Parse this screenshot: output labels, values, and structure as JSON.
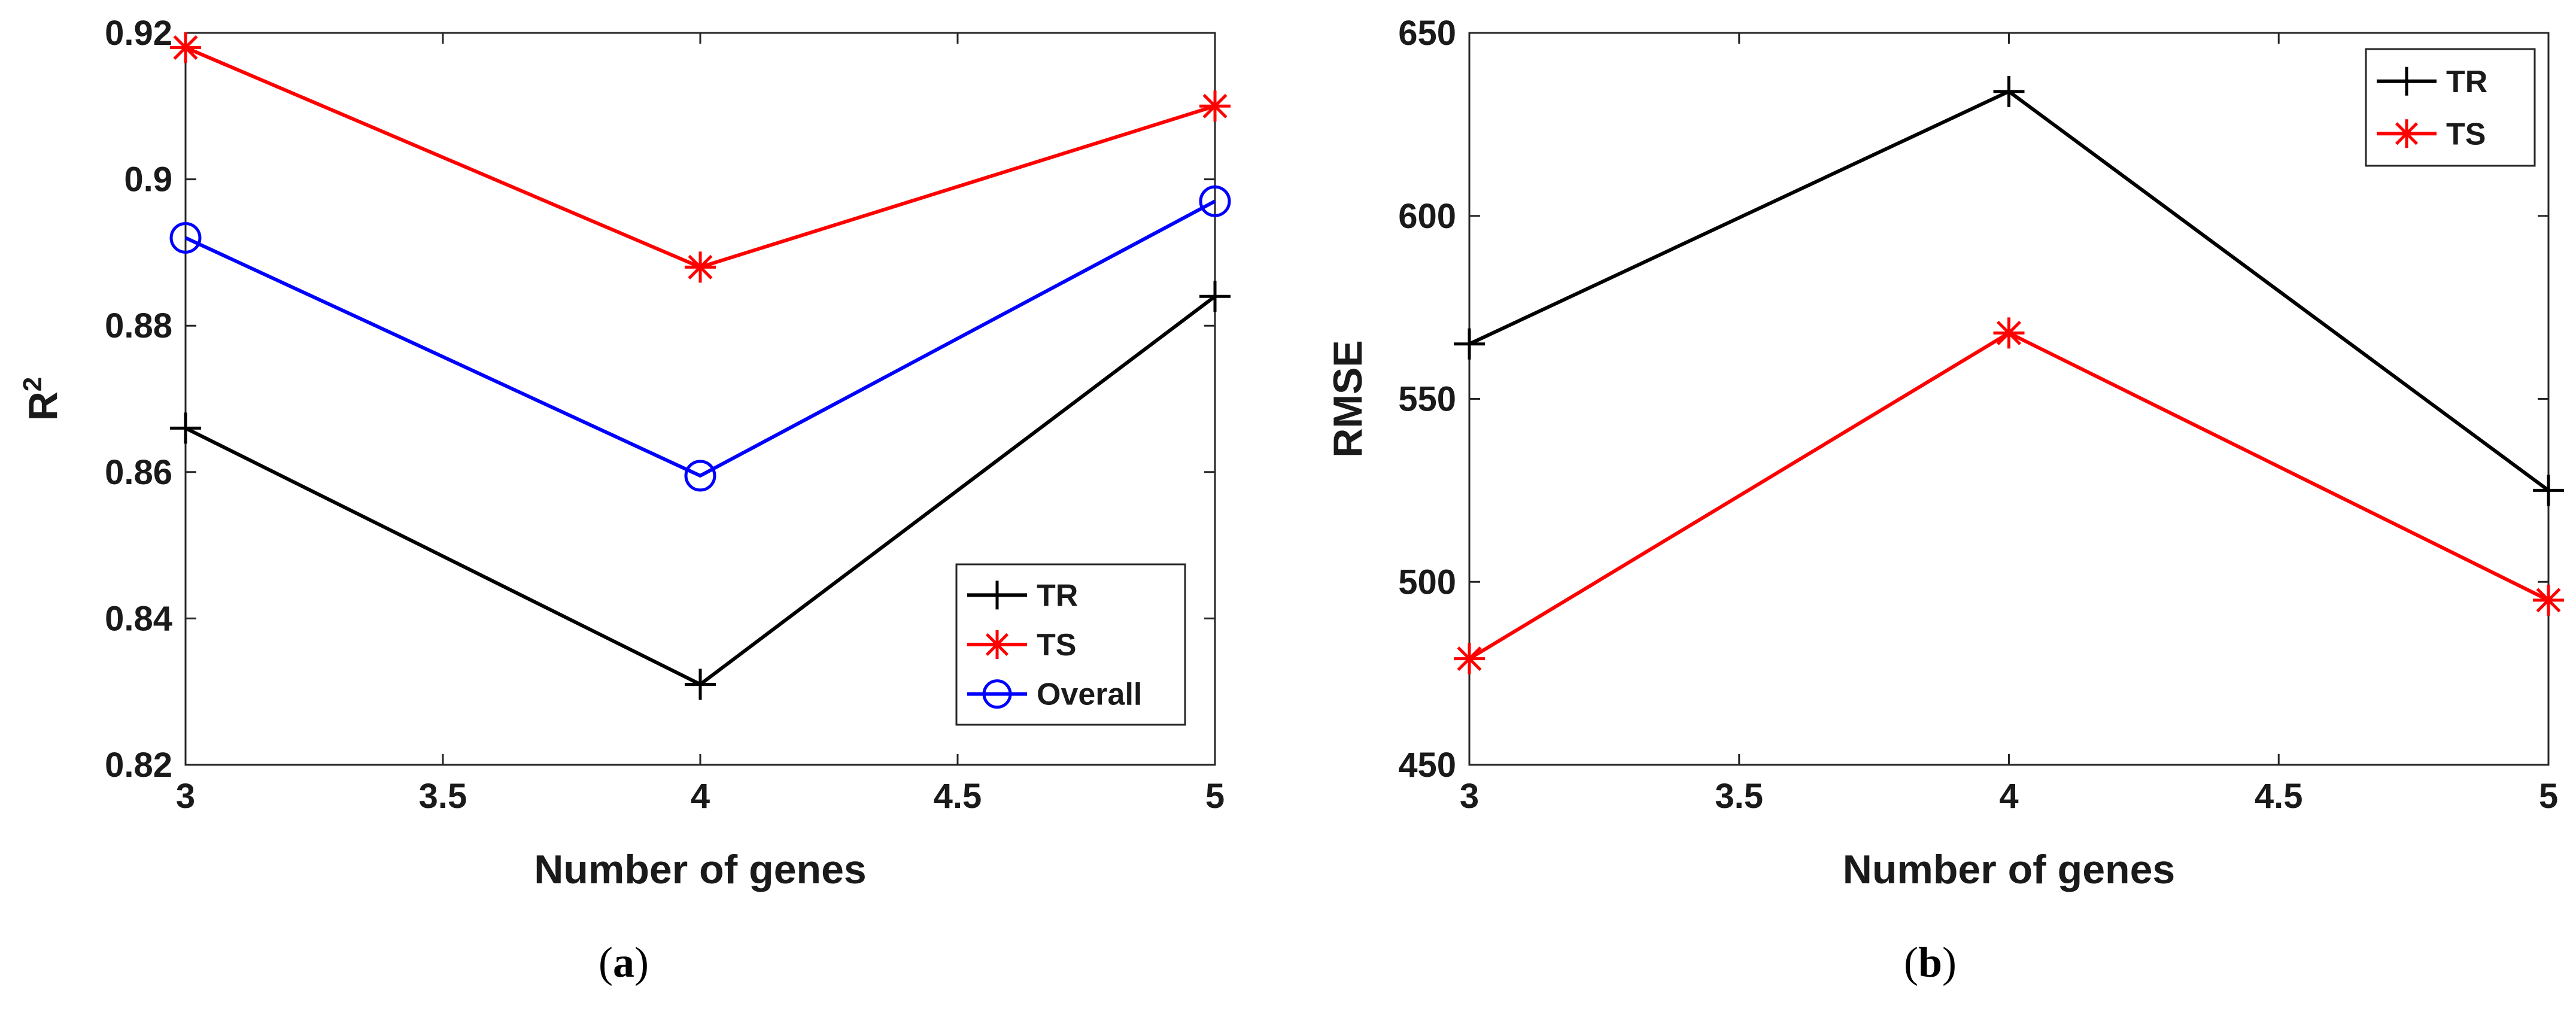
{
  "chart_data": [
    {
      "type": "line",
      "panel_caption": "(a)",
      "panel_letter": "a",
      "xlabel": "Number of genes",
      "ylabel": "R",
      "ylabel_superscript": "2",
      "xlim": [
        3,
        5
      ],
      "ylim": [
        0.82,
        0.92
      ],
      "xticks": [
        3,
        3.5,
        4,
        4.5,
        5
      ],
      "xtick_labels": [
        "3",
        "3.5",
        "4",
        "4.5",
        "5"
      ],
      "yticks": [
        0.82,
        0.84,
        0.86,
        0.88,
        0.9,
        0.92
      ],
      "ytick_labels": [
        "0.82",
        "0.84",
        "0.86",
        "0.88",
        "0.9",
        "0.92"
      ],
      "legend_position": "bottom-right",
      "x": [
        3,
        4,
        5
      ],
      "series": [
        {
          "name": "TR",
          "color": "#000000",
          "marker": "plus",
          "values": [
            0.866,
            0.831,
            0.884
          ]
        },
        {
          "name": "TS",
          "color": "#ff0000",
          "marker": "asterisk",
          "values": [
            0.918,
            0.888,
            0.91
          ]
        },
        {
          "name": "Overall",
          "color": "#0000ff",
          "marker": "circle",
          "values": [
            0.892,
            0.8595,
            0.897
          ]
        }
      ]
    },
    {
      "type": "line",
      "panel_caption": "(b)",
      "panel_letter": "b",
      "xlabel": "Number of genes",
      "ylabel": "RMSE",
      "ylabel_superscript": "",
      "xlim": [
        3,
        5
      ],
      "ylim": [
        450,
        650
      ],
      "xticks": [
        3,
        3.5,
        4,
        4.5,
        5
      ],
      "xtick_labels": [
        "3",
        "3.5",
        "4",
        "4.5",
        "5"
      ],
      "yticks": [
        450,
        500,
        550,
        600,
        650
      ],
      "ytick_labels": [
        "450",
        "500",
        "550",
        "600",
        "650"
      ],
      "legend_position": "top-right",
      "x": [
        3,
        4,
        5
      ],
      "series": [
        {
          "name": "TR",
          "color": "#000000",
          "marker": "plus",
          "values": [
            565,
            634,
            525
          ]
        },
        {
          "name": "TS",
          "color": "#ff0000",
          "marker": "asterisk",
          "values": [
            479,
            568,
            495
          ]
        }
      ]
    }
  ]
}
